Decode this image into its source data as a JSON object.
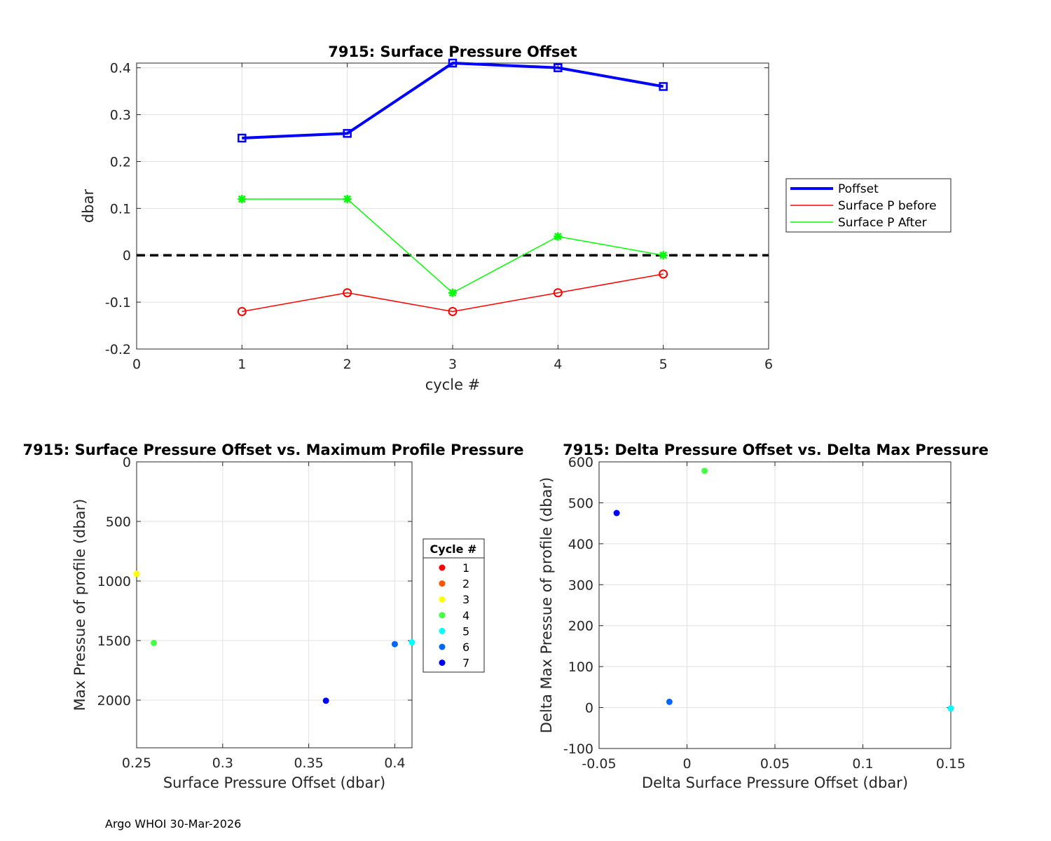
{
  "footer": "Argo WHOI 30-Mar-2026",
  "chart_data": [
    {
      "type": "line",
      "title": "7915: Surface Pressure Offset",
      "xlabel": "cycle #",
      "ylabel": "dbar",
      "xlim": [
        0,
        6
      ],
      "ylim": [
        -0.2,
        0.41
      ],
      "xticks": [
        0,
        1,
        2,
        3,
        4,
        5,
        6
      ],
      "xtick_labels": [
        "0",
        "1",
        "2",
        "3",
        "4",
        "5",
        "6"
      ],
      "yticks": [
        -0.2,
        -0.1,
        0,
        0.1,
        0.2,
        0.3,
        0.4
      ],
      "ytick_labels": [
        "-0.2",
        "-0.1",
        "0",
        "0.1",
        "0.2",
        "0.3",
        "0.4"
      ],
      "grid": true,
      "legend_position": "outside-right",
      "x": [
        1,
        2,
        3,
        4,
        5
      ],
      "series": [
        {
          "name": "Poffset",
          "values": [
            0.25,
            0.26,
            0.41,
            0.4,
            0.36
          ],
          "color": "#0000ff",
          "marker": "square",
          "linewidth": 4
        },
        {
          "name": "Surface P before",
          "values": [
            -0.12,
            -0.08,
            -0.12,
            -0.08,
            -0.04
          ],
          "color": "#ff0000",
          "marker": "circle",
          "linewidth": 1.5
        },
        {
          "name": "Surface P After",
          "values": [
            0.12,
            0.12,
            -0.08,
            0.04,
            0.0
          ],
          "color": "#00ff00",
          "marker": "star",
          "linewidth": 1.5
        }
      ],
      "reference_line": {
        "y": 0,
        "style": "dashed",
        "color": "#000000"
      }
    },
    {
      "type": "scatter",
      "title": "7915: Surface Pressure Offset vs. Maximum Profile Pressure",
      "xlabel": "Surface Pressure Offset (dbar)",
      "ylabel": "Max Pressue of profile (dbar)",
      "xlim": [
        0.25,
        0.41
      ],
      "ylim": [
        0,
        2400
      ],
      "y_reversed": true,
      "xticks": [
        0.25,
        0.3,
        0.35,
        0.4
      ],
      "xtick_labels": [
        "0.25",
        "0.3",
        "0.35",
        "0.4"
      ],
      "yticks": [
        0,
        500,
        1000,
        1500,
        2000
      ],
      "ytick_labels": [
        "0",
        "500",
        "1000",
        "1500",
        "2000"
      ],
      "grid": true,
      "legend_title": "Cycle #",
      "legend_position": "right",
      "points": [
        {
          "cycle": "1",
          "x": null,
          "y": null,
          "color": "#ff0000"
        },
        {
          "cycle": "2",
          "x": null,
          "y": null,
          "color": "#ff5500"
        },
        {
          "cycle": "3",
          "x": 0.25,
          "y": 940,
          "color": "#ffff00"
        },
        {
          "cycle": "4",
          "x": 0.26,
          "y": 1520,
          "color": "#44ff44"
        },
        {
          "cycle": "5",
          "x": 0.41,
          "y": 1515,
          "color": "#00ffff"
        },
        {
          "cycle": "6",
          "x": 0.4,
          "y": 1530,
          "color": "#0066ff"
        },
        {
          "cycle": "7",
          "x": 0.36,
          "y": 2005,
          "color": "#0000ff"
        }
      ]
    },
    {
      "type": "scatter",
      "title": "7915: Delta Pressure Offset vs. Delta Max Pressure",
      "xlabel": "Delta Surface Pressure Offset (dbar)",
      "ylabel": "Delta Max Pressue of profile (dbar)",
      "xlim": [
        -0.05,
        0.15
      ],
      "ylim": [
        -100,
        600
      ],
      "xticks": [
        -0.05,
        0,
        0.05,
        0.1,
        0.15
      ],
      "xtick_labels": [
        "-0.05",
        "0",
        "0.05",
        "0.1",
        "0.15"
      ],
      "yticks": [
        -100,
        0,
        100,
        200,
        300,
        400,
        500,
        600
      ],
      "ytick_labels": [
        "-100",
        "0",
        "100",
        "200",
        "300",
        "400",
        "500",
        "600"
      ],
      "grid": true,
      "points": [
        {
          "x": 0.01,
          "y": 578,
          "color": "#44ff44"
        },
        {
          "x": -0.04,
          "y": 475,
          "color": "#0000ff"
        },
        {
          "x": -0.01,
          "y": 14,
          "color": "#0066ff"
        },
        {
          "x": 0.15,
          "y": -2,
          "color": "#00ffff"
        }
      ]
    }
  ]
}
